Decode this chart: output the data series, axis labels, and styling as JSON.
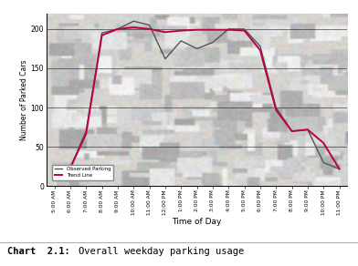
{
  "title_prefix": "Chart",
  "title_number": "2.1:",
  "title_text": "Overall weekday parking usage",
  "xlabel": "Time of Day",
  "ylabel": "Number of Parked Cars",
  "ylim": [
    0,
    220
  ],
  "yticks": [
    0,
    50,
    100,
    150,
    200
  ],
  "time_labels": [
    "5:00 AM",
    "6:00 AM",
    "7:00 AM",
    "8:00 AM",
    "9:00 AM",
    "10:00 AM",
    "11:00 AM",
    "12:00 PM",
    "1:00 PM",
    "2:00 PM",
    "3:00 PM",
    "4:00 PM",
    "5:00 PM",
    "6:00 PM",
    "7:00 PM",
    "8:00 PM",
    "9:00 PM",
    "10:00 PM",
    "11:00 PM"
  ],
  "observed_y": [
    22,
    24,
    70,
    195,
    200,
    210,
    205,
    162,
    185,
    175,
    183,
    200,
    200,
    178,
    100,
    70,
    72,
    30,
    22
  ],
  "trend_y": [
    22,
    23,
    67,
    192,
    200,
    202,
    200,
    196,
    198,
    199,
    199,
    199,
    198,
    173,
    97,
    70,
    72,
    55,
    22
  ],
  "observed_color": "#555555",
  "trend_color": "#bb0044",
  "legend_labels": [
    "Observed Parking",
    "Trend Line"
  ],
  "plot_bg_color": "#cccccc",
  "fig_bg_color": "#ffffff",
  "border_color": "#aaaaaa"
}
